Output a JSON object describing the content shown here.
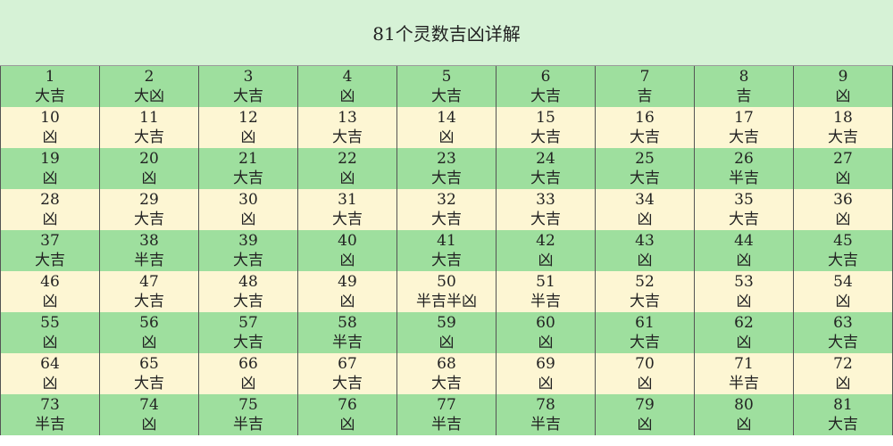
{
  "title": "81个灵数吉凶详解",
  "table": {
    "rows": [
      [
        {
          "n": 1,
          "v": "大吉"
        },
        {
          "n": 2,
          "v": "大凶"
        },
        {
          "n": 3,
          "v": "大吉"
        },
        {
          "n": 4,
          "v": "凶"
        },
        {
          "n": 5,
          "v": "大吉"
        },
        {
          "n": 6,
          "v": "大吉"
        },
        {
          "n": 7,
          "v": "吉"
        },
        {
          "n": 8,
          "v": "吉"
        },
        {
          "n": 9,
          "v": "凶"
        }
      ],
      [
        {
          "n": 10,
          "v": "凶"
        },
        {
          "n": 11,
          "v": "大吉"
        },
        {
          "n": 12,
          "v": "凶"
        },
        {
          "n": 13,
          "v": "大吉"
        },
        {
          "n": 14,
          "v": "凶"
        },
        {
          "n": 15,
          "v": "大吉"
        },
        {
          "n": 16,
          "v": "大吉"
        },
        {
          "n": 17,
          "v": "大吉"
        },
        {
          "n": 18,
          "v": "大吉"
        }
      ],
      [
        {
          "n": 19,
          "v": "凶"
        },
        {
          "n": 20,
          "v": "凶"
        },
        {
          "n": 21,
          "v": "大吉"
        },
        {
          "n": 22,
          "v": "凶"
        },
        {
          "n": 23,
          "v": "大吉"
        },
        {
          "n": 24,
          "v": "大吉"
        },
        {
          "n": 25,
          "v": "大吉"
        },
        {
          "n": 26,
          "v": "半吉"
        },
        {
          "n": 27,
          "v": "凶"
        }
      ],
      [
        {
          "n": 28,
          "v": "凶"
        },
        {
          "n": 29,
          "v": "大吉"
        },
        {
          "n": 30,
          "v": "凶"
        },
        {
          "n": 31,
          "v": "大吉"
        },
        {
          "n": 32,
          "v": "大吉"
        },
        {
          "n": 33,
          "v": "大吉"
        },
        {
          "n": 34,
          "v": "凶"
        },
        {
          "n": 35,
          "v": "大吉"
        },
        {
          "n": 36,
          "v": "凶"
        }
      ],
      [
        {
          "n": 37,
          "v": "大吉"
        },
        {
          "n": 38,
          "v": "半吉"
        },
        {
          "n": 39,
          "v": "大吉"
        },
        {
          "n": 40,
          "v": "凶"
        },
        {
          "n": 41,
          "v": "大吉"
        },
        {
          "n": 42,
          "v": "凶"
        },
        {
          "n": 43,
          "v": "凶"
        },
        {
          "n": 44,
          "v": "凶"
        },
        {
          "n": 45,
          "v": "大吉"
        }
      ],
      [
        {
          "n": 46,
          "v": "凶"
        },
        {
          "n": 47,
          "v": "大吉"
        },
        {
          "n": 48,
          "v": "大吉"
        },
        {
          "n": 49,
          "v": "凶"
        },
        {
          "n": 50,
          "v": "半吉半凶"
        },
        {
          "n": 51,
          "v": "半吉"
        },
        {
          "n": 52,
          "v": "大吉"
        },
        {
          "n": 53,
          "v": "凶"
        },
        {
          "n": 54,
          "v": "凶"
        }
      ],
      [
        {
          "n": 55,
          "v": "凶"
        },
        {
          "n": 56,
          "v": "凶"
        },
        {
          "n": 57,
          "v": "大吉"
        },
        {
          "n": 58,
          "v": "半吉"
        },
        {
          "n": 59,
          "v": "凶"
        },
        {
          "n": 60,
          "v": "凶"
        },
        {
          "n": 61,
          "v": "大吉"
        },
        {
          "n": 62,
          "v": "凶"
        },
        {
          "n": 63,
          "v": "大吉"
        }
      ],
      [
        {
          "n": 64,
          "v": "凶"
        },
        {
          "n": 65,
          "v": "大吉"
        },
        {
          "n": 66,
          "v": "凶"
        },
        {
          "n": 67,
          "v": "大吉"
        },
        {
          "n": 68,
          "v": "大吉"
        },
        {
          "n": 69,
          "v": "凶"
        },
        {
          "n": 70,
          "v": "凶"
        },
        {
          "n": 71,
          "v": "半吉"
        },
        {
          "n": 72,
          "v": "凶"
        }
      ],
      [
        {
          "n": 73,
          "v": "半吉"
        },
        {
          "n": 74,
          "v": "凶"
        },
        {
          "n": 75,
          "v": "半吉"
        },
        {
          "n": 76,
          "v": "凶"
        },
        {
          "n": 77,
          "v": "半吉"
        },
        {
          "n": 78,
          "v": "半吉"
        },
        {
          "n": 79,
          "v": "凶"
        },
        {
          "n": 80,
          "v": "凶"
        },
        {
          "n": 81,
          "v": "大吉"
        }
      ]
    ]
  }
}
